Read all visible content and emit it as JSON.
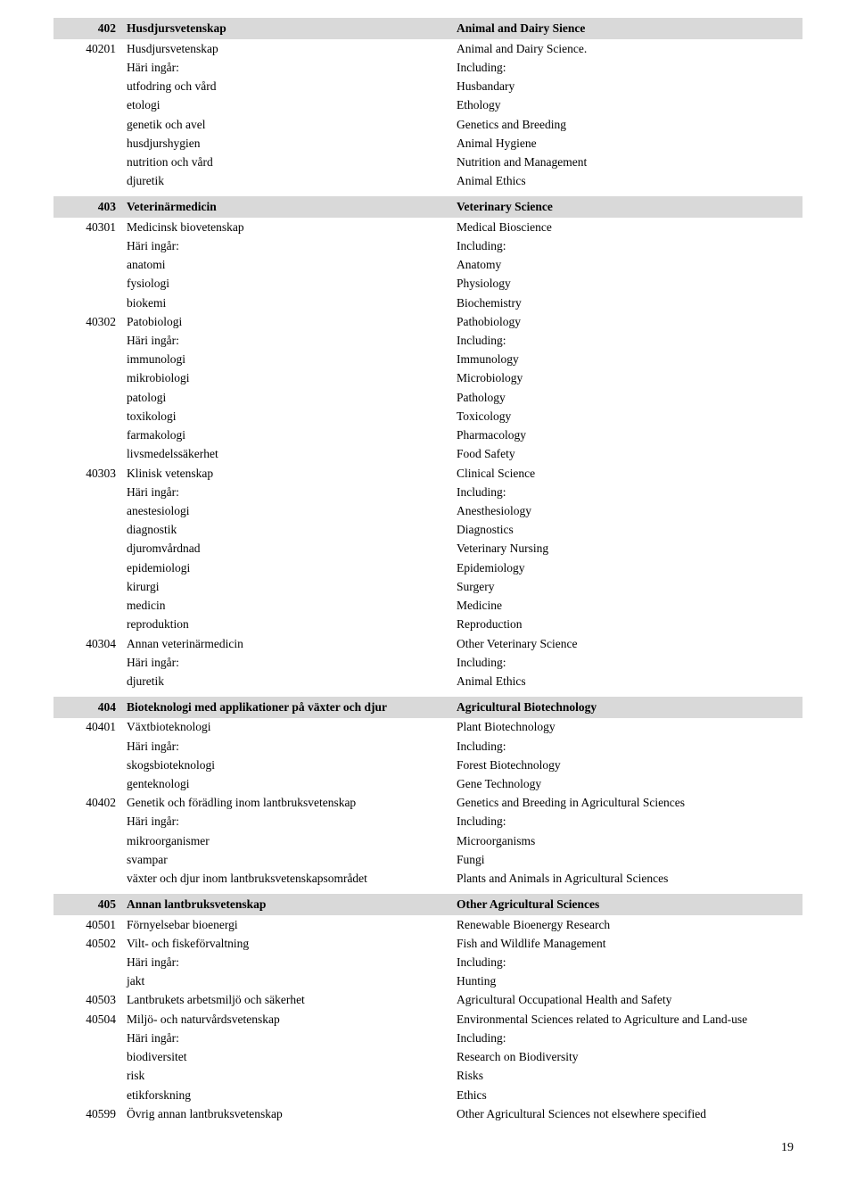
{
  "page_number": "19",
  "sections": [
    {
      "header": {
        "code": "402",
        "left": "Husdjursvetenskap",
        "right": "Animal and Dairy Sience"
      },
      "rows": [
        {
          "code": "40201",
          "left": "Husdjursvetenskap",
          "right": "Animal and Dairy Science."
        },
        {
          "code": "",
          "left": "Häri ingår:",
          "right": "Including:"
        },
        {
          "code": "",
          "left": "utfodring och vård",
          "right": "Husbandary"
        },
        {
          "code": "",
          "left": "etologi",
          "right": "Ethology"
        },
        {
          "code": "",
          "left": "genetik och avel",
          "right": "Genetics and Breeding"
        },
        {
          "code": "",
          "left": "husdjurshygien",
          "right": "Animal Hygiene"
        },
        {
          "code": "",
          "left": "nutrition och vård",
          "right": "Nutrition and Management"
        },
        {
          "code": "",
          "left": "djuretik",
          "right": "Animal Ethics"
        }
      ]
    },
    {
      "header": {
        "code": "403",
        "left": "Veterinärmedicin",
        "right": "Veterinary Science"
      },
      "rows": [
        {
          "code": "40301",
          "left": "Medicinsk biovetenskap",
          "right": "Medical Bioscience"
        },
        {
          "code": "",
          "left": "Häri ingår:",
          "right": "Including:"
        },
        {
          "code": "",
          "left": "anatomi",
          "right": "Anatomy"
        },
        {
          "code": "",
          "left": "fysiologi",
          "right": "Physiology"
        },
        {
          "code": "",
          "left": "biokemi",
          "right": "Biochemistry"
        },
        {
          "code": "40302",
          "left": "Patobiologi",
          "right": "Pathobiology"
        },
        {
          "code": "",
          "left": "Häri ingår:",
          "right": "Including:"
        },
        {
          "code": "",
          "left": "immunologi",
          "right": "Immunology"
        },
        {
          "code": "",
          "left": "mikrobiologi",
          "right": "Microbiology"
        },
        {
          "code": "",
          "left": "patologi",
          "right": "Pathology"
        },
        {
          "code": "",
          "left": "toxikologi",
          "right": "Toxicology"
        },
        {
          "code": "",
          "left": "farmakologi",
          "right": "Pharmacology"
        },
        {
          "code": "",
          "left": "livsmedelssäkerhet",
          "right": "Food Safety"
        },
        {
          "code": "40303",
          "left": "Klinisk vetenskap",
          "right": "Clinical Science"
        },
        {
          "code": "",
          "left": "Häri ingår:",
          "right": "Including:"
        },
        {
          "code": "",
          "left": "anestesiologi",
          "right": "Anesthesiology"
        },
        {
          "code": "",
          "left": "diagnostik",
          "right": "Diagnostics"
        },
        {
          "code": "",
          "left": "djuromvårdnad",
          "right": "Veterinary Nursing"
        },
        {
          "code": "",
          "left": "epidemiologi",
          "right": "Epidemiology"
        },
        {
          "code": "",
          "left": "kirurgi",
          "right": "Surgery"
        },
        {
          "code": "",
          "left": "medicin",
          "right": "Medicine"
        },
        {
          "code": "",
          "left": "reproduktion",
          "right": "Reproduction"
        },
        {
          "code": "40304",
          "left": "Annan veterinärmedicin",
          "right": "Other Veterinary Science"
        },
        {
          "code": "",
          "left": "Häri ingår:",
          "right": "Including:"
        },
        {
          "code": "",
          "left": "djuretik",
          "right": "Animal Ethics"
        }
      ]
    },
    {
      "header": {
        "code": "404",
        "left": "Bioteknologi med applikationer på växter och djur",
        "right": "Agricultural Biotechnology"
      },
      "rows": [
        {
          "code": "40401",
          "left": "Växtbioteknologi",
          "right": "Plant Biotechnology"
        },
        {
          "code": "",
          "left": "Häri ingår:",
          "right": "Including:"
        },
        {
          "code": "",
          "left": "skogsbioteknologi",
          "right": "Forest Biotechnology"
        },
        {
          "code": "",
          "left": "genteknologi",
          "right": "Gene Technology"
        },
        {
          "code": "40402",
          "left": "Genetik och förädling inom lantbruksvetenskap",
          "right": "Genetics and Breeding in Agricultural Sciences"
        },
        {
          "code": "",
          "left": "Häri ingår:",
          "right": "Including:"
        },
        {
          "code": "",
          "left": "mikroorganismer",
          "right": "Microorganisms"
        },
        {
          "code": "",
          "left": "svampar",
          "right": "Fungi"
        },
        {
          "code": "",
          "left": "växter och djur inom lantbruksvetenskapsområdet",
          "right": "Plants and Animals in Agricultural Sciences"
        }
      ]
    },
    {
      "header": {
        "code": "405",
        "left": "Annan lantbruksvetenskap",
        "right": "Other Agricultural Sciences"
      },
      "rows": [
        {
          "code": "40501",
          "left": "Förnyelsebar bioenergi",
          "right": "Renewable Bioenergy Research"
        },
        {
          "code": "40502",
          "left": "Vilt- och fiskeförvaltning",
          "right": "Fish and Wildlife Management"
        },
        {
          "code": "",
          "left": "Häri ingår:",
          "right": "Including:"
        },
        {
          "code": "",
          "left": "jakt",
          "right": "Hunting"
        },
        {
          "code": "40503",
          "left": "Lantbrukets arbetsmiljö och säkerhet",
          "right": "Agricultural Occupational Health and Safety"
        },
        {
          "code": "40504",
          "left": "Miljö- och  naturvårdsvetenskap",
          "right": "Environmental Sciences related to Agriculture and Land-use"
        },
        {
          "code": "",
          "left": "Häri ingår:",
          "right": "Including:"
        },
        {
          "code": "",
          "left": "biodiversitet",
          "right": "Research on Biodiversity"
        },
        {
          "code": "",
          "left": "risk",
          "right": "Risks"
        },
        {
          "code": "",
          "left": "etikforskning",
          "right": "Ethics"
        },
        {
          "code": "40599",
          "left": "Övrig annan lantbruksvetenskap",
          "right": "Other Agricultural Sciences not elsewhere specified"
        }
      ]
    }
  ]
}
